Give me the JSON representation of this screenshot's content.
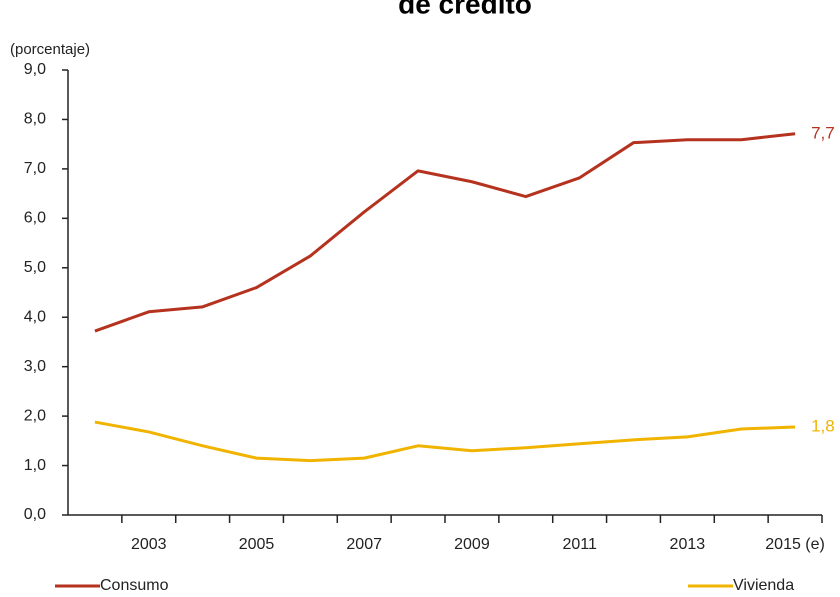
{
  "chart_data": {
    "type": "line",
    "title": "de crédito",
    "subtitle": "(porcentaje)",
    "categories": [
      null,
      "2003",
      null,
      "2005",
      null,
      "2007",
      null,
      "2009",
      null,
      "2011",
      null,
      "2013",
      null,
      "2015 (e)"
    ],
    "series": [
      {
        "name": "Consumo",
        "color": "#b5321f",
        "values": [
          3.72,
          4.11,
          4.21,
          4.6,
          5.24,
          6.13,
          6.96,
          6.74,
          6.44,
          6.82,
          7.53,
          7.59,
          7.59,
          7.71
        ],
        "value_labels": [
          null,
          null,
          null,
          null,
          null,
          null,
          null,
          null,
          null,
          null,
          null,
          null,
          null,
          "7,7"
        ]
      },
      {
        "name": "Vivienda",
        "color": "#f0b400",
        "values": [
          1.88,
          1.68,
          1.4,
          1.15,
          1.1,
          1.15,
          1.4,
          1.3,
          1.36,
          1.44,
          1.52,
          1.58,
          1.74,
          1.78
        ],
        "value_labels": [
          null,
          null,
          null,
          null,
          null,
          null,
          null,
          null,
          null,
          null,
          null,
          null,
          null,
          "1,8"
        ]
      }
    ],
    "ylim": [
      0,
      9
    ],
    "yticks": [
      {
        "value": 0,
        "label": "0,0"
      },
      {
        "value": 1,
        "label": "1,0"
      },
      {
        "value": 2,
        "label": "2,0"
      },
      {
        "value": 3,
        "label": "3,0"
      },
      {
        "value": 4,
        "label": "4,0"
      },
      {
        "value": 5,
        "label": "5,0"
      },
      {
        "value": 6,
        "label": "6,0"
      },
      {
        "value": 7,
        "label": "7,0"
      },
      {
        "value": 8,
        "label": "8,0"
      },
      {
        "value": 9,
        "label": "9,0"
      }
    ],
    "legend": "bottom"
  }
}
